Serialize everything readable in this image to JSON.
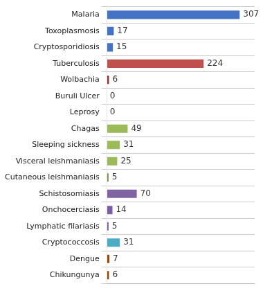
{
  "chart_data": {
    "type": "bar",
    "orientation": "horizontal",
    "categories": [
      "Malaria",
      "Toxoplasmosis",
      "Cryptosporidiosis",
      "Tuberculosis",
      "Wolbachia",
      "Buruli Ulcer",
      "Leprosy",
      "Chagas",
      "Sleeping sickness",
      "Visceral leishmaniasis",
      "Cutaneous leishmaniasis",
      "Schistosomiasis",
      "Onchocerciasis",
      "Lymphatic filariasis",
      "Cryptococcosis",
      "Dengue",
      "Chikungunya"
    ],
    "values": [
      307,
      17,
      15,
      224,
      6,
      0,
      0,
      49,
      31,
      25,
      5,
      70,
      14,
      5,
      31,
      7,
      6
    ],
    "colors": [
      "#4472C4",
      "#4472C4",
      "#4472C4",
      "#C0504D",
      "#963634",
      "#C0C0C0",
      "#C0C0C0",
      "#9BBB59",
      "#9BBB59",
      "#9BBB59",
      "#76923C",
      "#8064A2",
      "#7B5EA7",
      "#7B5EA7",
      "#4BACC6",
      "#974706",
      "#974706"
    ],
    "xlim": [
      0,
      340
    ],
    "grid": true,
    "tick_labels": "y",
    "data_labels": true
  }
}
